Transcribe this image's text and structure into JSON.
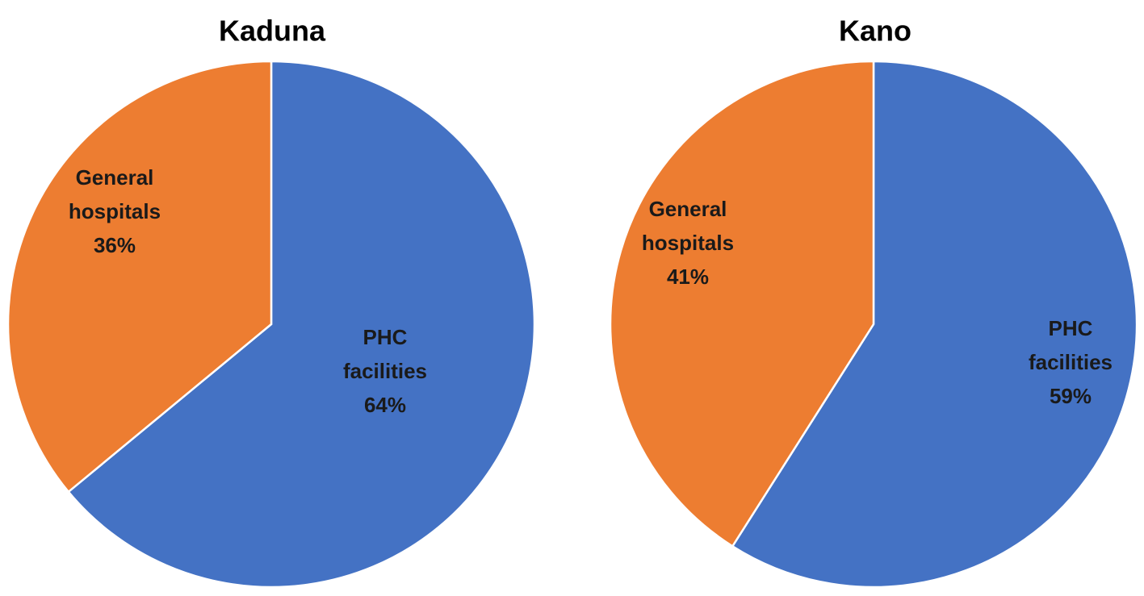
{
  "chart_data": [
    {
      "type": "pie",
      "title": "Kaduna",
      "start_angle_deg": 0,
      "direction": "clockwise",
      "slices": [
        {
          "name": "PHC facilities",
          "value": 64,
          "label_lines": [
            "PHC",
            "facilities",
            "64%"
          ],
          "color": "#4472C4"
        },
        {
          "name": "General hospitals",
          "value": 36,
          "label_lines": [
            "General",
            "hospitals",
            "36%"
          ],
          "color": "#ED7D31"
        }
      ]
    },
    {
      "type": "pie",
      "title": "Kano",
      "start_angle_deg": 0,
      "direction": "clockwise",
      "slices": [
        {
          "name": "PHC facilities",
          "value": 59,
          "label_lines": [
            "PHC",
            "facilities",
            "59%"
          ],
          "color": "#4472C4"
        },
        {
          "name": "General hospitals",
          "value": 41,
          "label_lines": [
            "General",
            "hospitals",
            "41%"
          ],
          "color": "#ED7D31"
        }
      ]
    }
  ]
}
